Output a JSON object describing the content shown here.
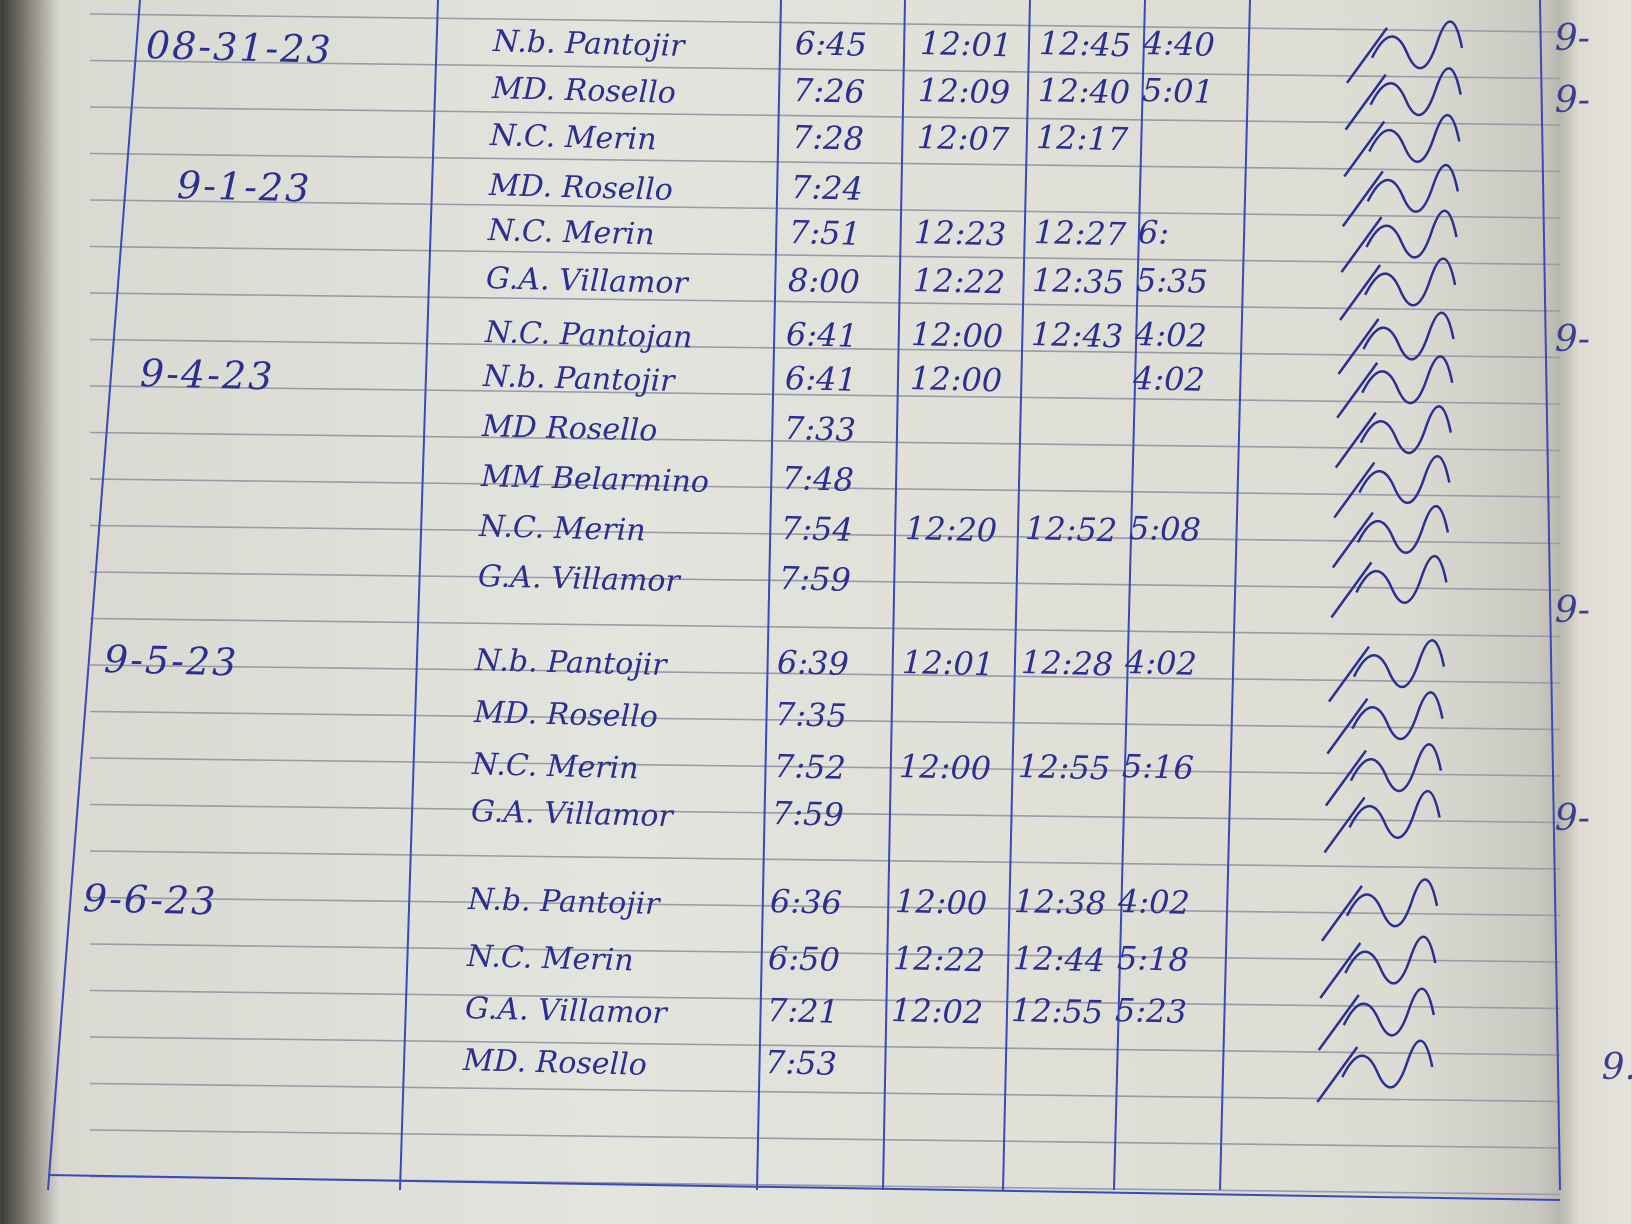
{
  "log": {
    "days": [
      {
        "date": "08-31-23",
        "entries": [
          {
            "name": "N.b. Pantojir",
            "time_in": "6:45",
            "lunch_out": "12:01",
            "lunch_in": "12:45",
            "time_out": "4:40"
          },
          {
            "name": "MD. Rosello",
            "time_in": "7:26",
            "lunch_out": "12:09",
            "lunch_in": "12:40",
            "time_out": "5:01"
          },
          {
            "name": "N.C. Merin",
            "time_in": "7:28",
            "lunch_out": "12:07",
            "lunch_in": "12:17",
            "time_out": ""
          }
        ]
      },
      {
        "date": "9-1-23",
        "entries": [
          {
            "name": "MD. Rosello",
            "time_in": "7:24",
            "lunch_out": "",
            "lunch_in": "",
            "time_out": ""
          },
          {
            "name": "N.C. Merin",
            "time_in": "7:51",
            "lunch_out": "12:23",
            "lunch_in": "12:27",
            "time_out": "6:"
          },
          {
            "name": "G.A. Villamor",
            "time_in": "8:00",
            "lunch_out": "12:22",
            "lunch_in": "12:35",
            "time_out": "5:35"
          },
          {
            "name": "N.C. Pantojan",
            "time_in": "6:41",
            "lunch_out": "12:00",
            "lunch_in": "12:43",
            "time_out": "4:02"
          }
        ]
      },
      {
        "date": "9-4-23",
        "entries": [
          {
            "name": "N.b. Pantojir",
            "time_in": "6:41",
            "lunch_out": "12:00",
            "lunch_in": "",
            "time_out": "4:02"
          },
          {
            "name": "MD Rosello",
            "time_in": "7:33",
            "lunch_out": "",
            "lunch_in": "",
            "time_out": ""
          },
          {
            "name": "MM Belarmino",
            "time_in": "7:48",
            "lunch_out": "",
            "lunch_in": "",
            "time_out": ""
          },
          {
            "name": "N.C. Merin",
            "time_in": "7:54",
            "lunch_out": "12:20",
            "lunch_in": "12:52",
            "time_out": "5:08"
          },
          {
            "name": "G.A. Villamor",
            "time_in": "7:59",
            "lunch_out": "",
            "lunch_in": "",
            "time_out": ""
          }
        ]
      },
      {
        "date": "9-5-23",
        "entries": [
          {
            "name": "N.b. Pantojir",
            "time_in": "6:39",
            "lunch_out": "12:01",
            "lunch_in": "12:28",
            "time_out": "4:02"
          },
          {
            "name": "MD. Rosello",
            "time_in": "7:35",
            "lunch_out": "",
            "lunch_in": "",
            "time_out": ""
          },
          {
            "name": "N.C. Merin",
            "time_in": "7:52",
            "lunch_out": "12:00",
            "lunch_in": "12:55",
            "time_out": "5:16"
          },
          {
            "name": "G.A. Villamor",
            "time_in": "7:59",
            "lunch_out": "",
            "lunch_in": "",
            "time_out": ""
          }
        ]
      },
      {
        "date": "9-6-23",
        "entries": [
          {
            "name": "N.b. Pantojir",
            "time_in": "6:36",
            "lunch_out": "12:00",
            "lunch_in": "12:38",
            "time_out": "4:02"
          },
          {
            "name": "N.C. Merin",
            "time_in": "6:50",
            "lunch_out": "12:22",
            "lunch_in": "12:44",
            "time_out": "5:18"
          },
          {
            "name": "G.A. Villamor",
            "time_in": "7:21",
            "lunch_out": "12:02",
            "lunch_in": "12:55",
            "time_out": "5:23"
          },
          {
            "name": "MD. Rosello",
            "time_in": "7:53",
            "lunch_out": "",
            "lunch_in": "",
            "time_out": ""
          }
        ]
      }
    ]
  },
  "next_page_fragments": [
    "9-",
    "9-",
    "9-",
    "9-",
    "9-",
    "9."
  ],
  "colors": {
    "ink": "#2b2f8f",
    "rule": "#9a9aa8",
    "column_line": "#3a48b8",
    "paper": "#e4e4de"
  }
}
